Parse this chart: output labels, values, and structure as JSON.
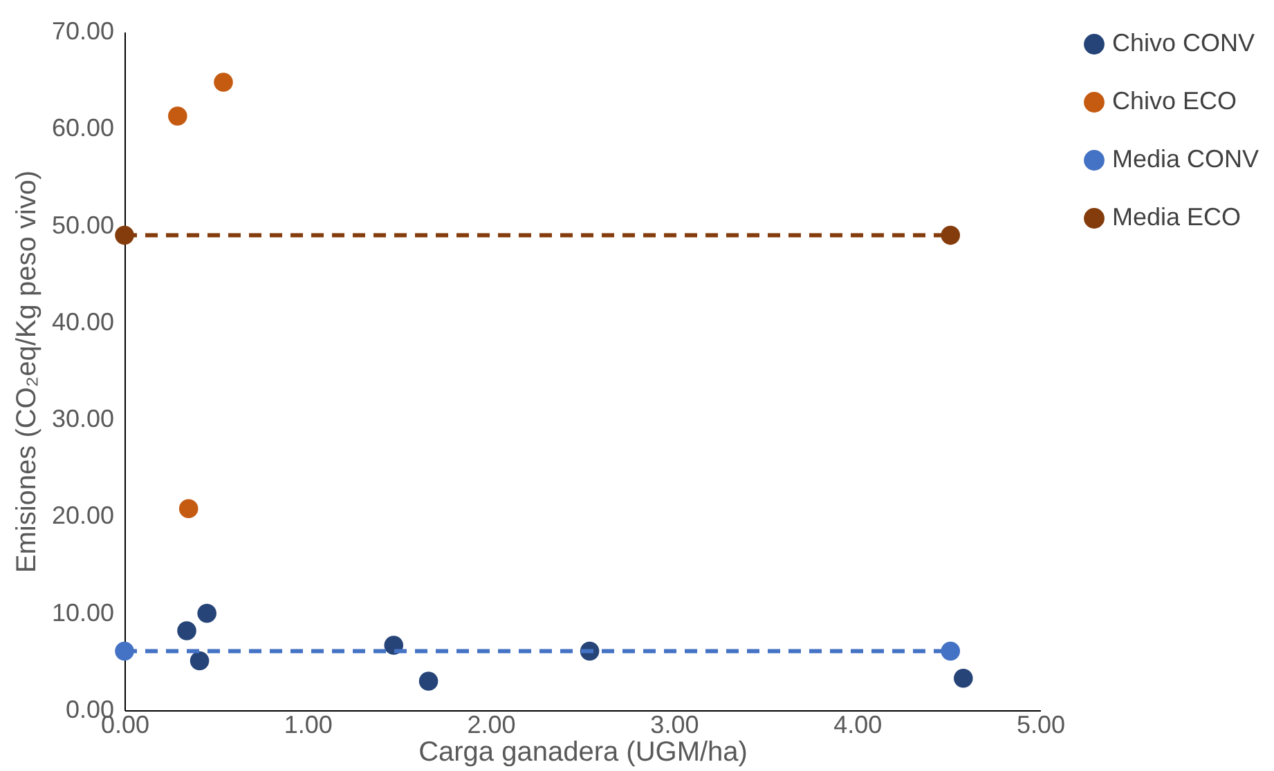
{
  "chart_data": {
    "type": "scatter",
    "xlabel": "Carga ganadera (UGM/ha)",
    "ylabel": "Emisiones (CO₂eq/Kg peso vivo)",
    "xlim": [
      0,
      5
    ],
    "ylim": [
      0,
      70
    ],
    "xticks": [
      {
        "value": 0,
        "label": "0.00"
      },
      {
        "value": 1,
        "label": "1.00"
      },
      {
        "value": 2,
        "label": "2.00"
      },
      {
        "value": 3,
        "label": "3.00"
      },
      {
        "value": 4,
        "label": "4.00"
      },
      {
        "value": 5,
        "label": "5.00"
      }
    ],
    "yticks": [
      {
        "value": 0,
        "label": "0.00"
      },
      {
        "value": 10,
        "label": "10.00"
      },
      {
        "value": 20,
        "label": "20.00"
      },
      {
        "value": 30,
        "label": "30.00"
      },
      {
        "value": 40,
        "label": "40.00"
      },
      {
        "value": 50,
        "label": "50.00"
      },
      {
        "value": 60,
        "label": "60.00"
      },
      {
        "value": 70,
        "label": "70.00"
      }
    ],
    "grid": false,
    "legend": "right",
    "marker": "circle",
    "series": [
      {
        "name": "Chivo CONV",
        "color": "#264478",
        "x": [
          0.34,
          0.45,
          0.41,
          1.47,
          1.66,
          2.54,
          4.58
        ],
        "values": [
          8.2,
          10.0,
          5.1,
          6.7,
          3.0,
          6.1,
          3.3
        ]
      },
      {
        "name": "Chivo ECO",
        "color": "#c55a11",
        "x": [
          0.29,
          0.54,
          0.35
        ],
        "values": [
          61.3,
          64.8,
          20.8
        ]
      },
      {
        "name": "Media CONV",
        "type": "line",
        "line_style": "dashed",
        "color": "#4472c4",
        "x": [
          0,
          4.51
        ],
        "values": [
          6.1,
          6.1
        ]
      },
      {
        "name": "Media ECO",
        "type": "line",
        "line_style": "dashed",
        "color": "#843c0c",
        "x": [
          0,
          4.51
        ],
        "values": [
          49.0,
          49.0
        ]
      }
    ]
  }
}
